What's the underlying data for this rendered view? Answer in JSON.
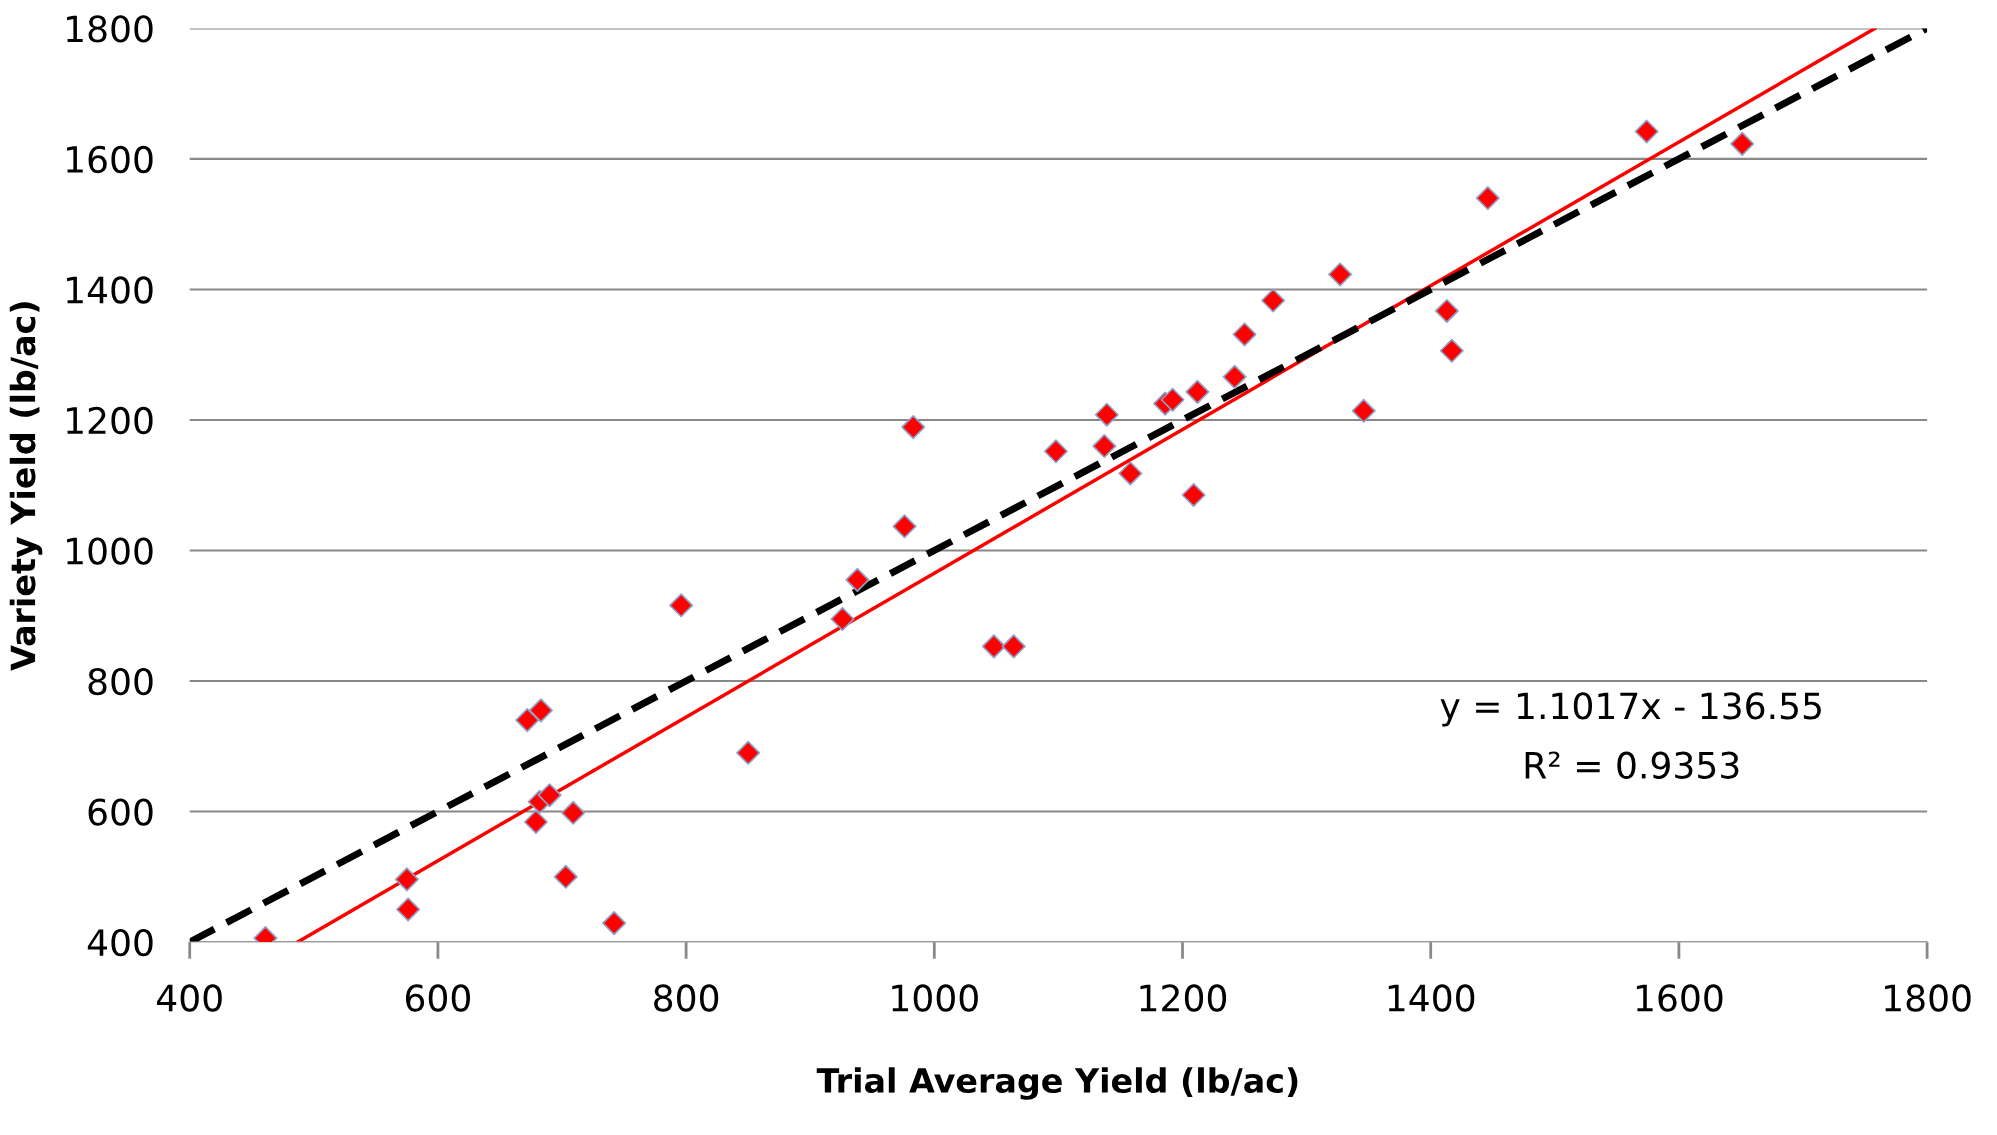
{
  "chart_data": {
    "type": "scatter",
    "xlabel": "Trial Average Yield (lb/ac)",
    "ylabel": "Variety Yield (lb/ac)",
    "xlim": [
      400,
      1800
    ],
    "xticks": [
      400,
      600,
      800,
      1000,
      1200,
      1400,
      1600,
      1800
    ],
    "ylim": [
      400,
      1800
    ],
    "yticks": [
      400,
      600,
      800,
      1000,
      1200,
      1400,
      1600,
      1800
    ],
    "grid": "y",
    "legend": false,
    "annotations": [
      "y = 1.1017x - 136.55",
      "R² = 0.9353"
    ],
    "series": [
      {
        "type": "scatter",
        "color": "#ff0000",
        "marker": "diamond",
        "x": [
          461,
          575,
          576,
          672,
          683,
          679,
          682,
          690,
          709,
          703,
          742,
          796,
          850,
          926,
          938,
          976,
          983,
          1048,
          1064,
          1098,
          1137,
          1139,
          1158,
          1186,
          1192,
          1209,
          1212,
          1242,
          1250,
          1273,
          1327,
          1346,
          1413,
          1417,
          1446,
          1574,
          1651
        ],
        "values": [
          406,
          496,
          450,
          740,
          755,
          584,
          615,
          625,
          598,
          500,
          429,
          916,
          690,
          895,
          955,
          1037,
          1189,
          853,
          853,
          1152,
          1160,
          1208,
          1118,
          1225,
          1231,
          1085,
          1243,
          1266,
          1331,
          1383,
          1423,
          1214,
          1367,
          1306,
          1540,
          1642,
          1623
        ]
      },
      {
        "type": "line",
        "color": "#ff0000",
        "line_style": "solid",
        "marker": "none",
        "x": [
          487,
          1758
        ],
        "values": [
          400,
          1800
        ]
      },
      {
        "type": "line",
        "color": "#000000",
        "line_style": "dashed",
        "marker": "none",
        "x": [
          400,
          1800
        ],
        "values": [
          400,
          1800
        ]
      }
    ]
  }
}
